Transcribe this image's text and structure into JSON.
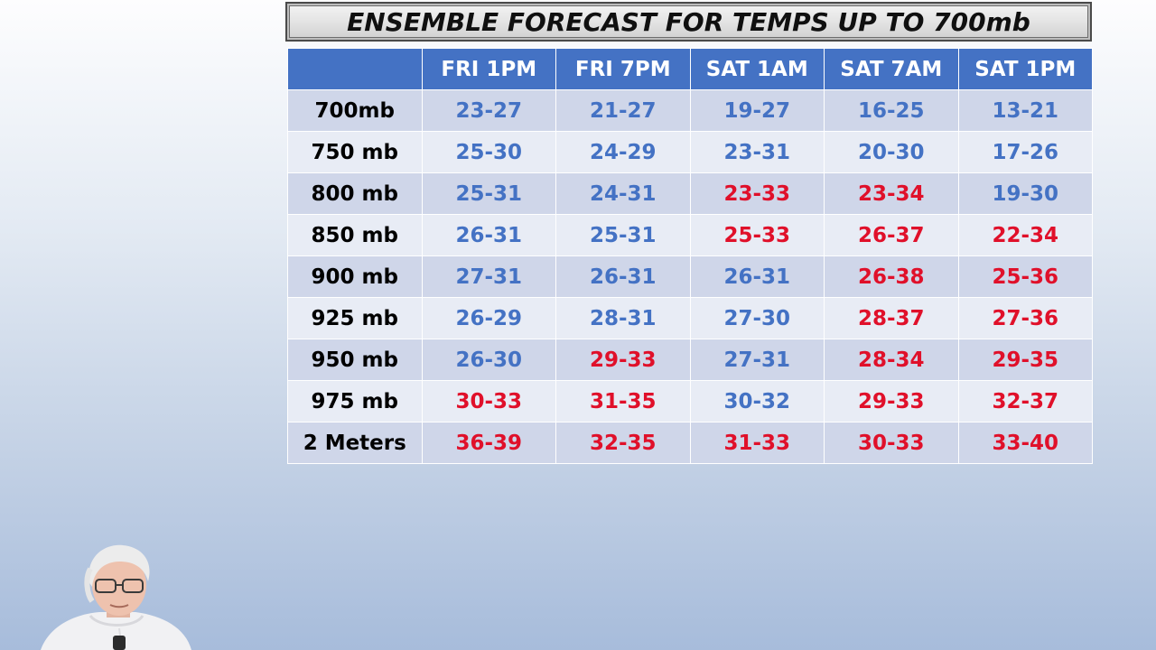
{
  "title": "ENSEMBLE FORECAST FOR TEMPS UP TO 700mb",
  "colors": {
    "header_bg": "#4472c4",
    "cool": "#4472c4",
    "warm": "#e0102a",
    "row_dark": "#cfd6e9",
    "row_light": "#e8ecf5"
  },
  "table": {
    "corner": "",
    "columns": [
      "FRI 1PM",
      "FRI 7PM",
      "SAT 1AM",
      "SAT 7AM",
      "SAT 1PM"
    ],
    "rows": [
      {
        "label": "700mb",
        "cells": [
          {
            "value": "23-27",
            "tone": "cool"
          },
          {
            "value": "21-27",
            "tone": "cool"
          },
          {
            "value": "19-27",
            "tone": "cool"
          },
          {
            "value": "16-25",
            "tone": "cool"
          },
          {
            "value": "13-21",
            "tone": "cool"
          }
        ]
      },
      {
        "label": "750 mb",
        "cells": [
          {
            "value": "25-30",
            "tone": "cool"
          },
          {
            "value": "24-29",
            "tone": "cool"
          },
          {
            "value": "23-31",
            "tone": "cool"
          },
          {
            "value": "20-30",
            "tone": "cool"
          },
          {
            "value": "17-26",
            "tone": "cool"
          }
        ]
      },
      {
        "label": "800 mb",
        "cells": [
          {
            "value": "25-31",
            "tone": "cool"
          },
          {
            "value": "24-31",
            "tone": "cool"
          },
          {
            "value": "23-33",
            "tone": "warm"
          },
          {
            "value": "23-34",
            "tone": "warm"
          },
          {
            "value": "19-30",
            "tone": "cool"
          }
        ]
      },
      {
        "label": "850 mb",
        "cells": [
          {
            "value": "26-31",
            "tone": "cool"
          },
          {
            "value": "25-31",
            "tone": "cool"
          },
          {
            "value": "25-33",
            "tone": "warm"
          },
          {
            "value": "26-37",
            "tone": "warm"
          },
          {
            "value": "22-34",
            "tone": "warm"
          }
        ]
      },
      {
        "label": "900 mb",
        "cells": [
          {
            "value": "27-31",
            "tone": "cool"
          },
          {
            "value": "26-31",
            "tone": "cool"
          },
          {
            "value": "26-31",
            "tone": "cool"
          },
          {
            "value": "26-38",
            "tone": "warm"
          },
          {
            "value": "25-36",
            "tone": "warm"
          }
        ]
      },
      {
        "label": "925 mb",
        "cells": [
          {
            "value": "26-29",
            "tone": "cool"
          },
          {
            "value": "28-31",
            "tone": "cool"
          },
          {
            "value": "27-30",
            "tone": "cool"
          },
          {
            "value": "28-37",
            "tone": "warm"
          },
          {
            "value": "27-36",
            "tone": "warm"
          }
        ]
      },
      {
        "label": "950 mb",
        "cells": [
          {
            "value": "26-30",
            "tone": "cool"
          },
          {
            "value": "29-33",
            "tone": "warm"
          },
          {
            "value": "27-31",
            "tone": "cool"
          },
          {
            "value": "28-34",
            "tone": "warm"
          },
          {
            "value": "29-35",
            "tone": "warm"
          }
        ]
      },
      {
        "label": "975 mb",
        "cells": [
          {
            "value": "30-33",
            "tone": "warm"
          },
          {
            "value": "31-35",
            "tone": "warm"
          },
          {
            "value": "30-32",
            "tone": "cool"
          },
          {
            "value": "29-33",
            "tone": "warm"
          },
          {
            "value": "32-37",
            "tone": "warm"
          }
        ]
      },
      {
        "label": "2 Meters",
        "cells": [
          {
            "value": "36-39",
            "tone": "warm"
          },
          {
            "value": "32-35",
            "tone": "warm"
          },
          {
            "value": "31-33",
            "tone": "warm"
          },
          {
            "value": "30-33",
            "tone": "warm"
          },
          {
            "value": "33-40",
            "tone": "warm"
          }
        ]
      }
    ]
  },
  "presenter": {
    "icon": "presenter-webcam-icon"
  }
}
